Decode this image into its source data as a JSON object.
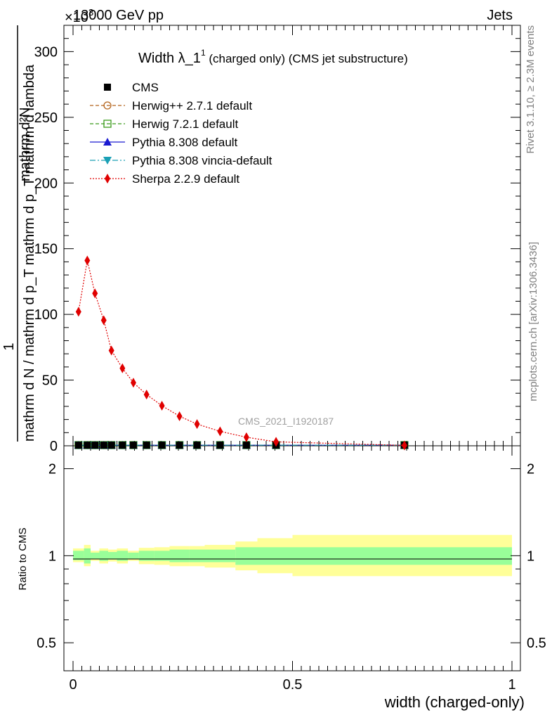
{
  "header": {
    "energy_label": "13000 GeV pp",
    "exponent_label": "×10",
    "exponent_power": "3",
    "process_label": "Jets"
  },
  "plot_title": {
    "main": "Width λ_1",
    "superscript": "1",
    "suffix": " (charged only) (CMS jet substructure)"
  },
  "side_labels": {
    "rivet": "Rivet 3.1.10, ≥ 2.3M events",
    "mcplots": "mcplots.cern.ch [arXiv:1306.3436]"
  },
  "watermark": "CMS_2021_I1920187",
  "axes": {
    "ylabel_numerator": "1",
    "ylabel_denominator": "mathrm d N / mathrm d p_T mathrm d p_T mathrm d lambda",
    "ylabel_numerator_full": "mathrm d²N",
    "ratio_ylabel": "Ratio to CMS",
    "xlabel": "width (charged-only)",
    "main_yticks": [
      "0",
      "50",
      "100",
      "150",
      "200",
      "250",
      "300"
    ],
    "ratio_yticks_left": [
      "0.5",
      "1",
      "2"
    ],
    "ratio_yticks_right": [
      "0.5",
      "1",
      "2"
    ],
    "xticks": [
      "0",
      "0.5",
      "1"
    ]
  },
  "legend": [
    {
      "label": "CMS",
      "color": "#000000",
      "marker": "square-filled",
      "line": "none"
    },
    {
      "label": "Herwig++ 2.7.1 default",
      "color": "#b5651d",
      "marker": "circle-open",
      "line": "dashed"
    },
    {
      "label": "Herwig 7.2.1 default",
      "color": "#3a9a1a",
      "marker": "square-open",
      "line": "dashed"
    },
    {
      "label": "Pythia 8.308 default",
      "color": "#1a1ad0",
      "marker": "triangle-up-filled",
      "line": "solid"
    },
    {
      "label": "Pythia 8.308 vincia-default",
      "color": "#1aa0b5",
      "marker": "triangle-down-filled",
      "line": "dashdot"
    },
    {
      "label": "Sherpa 2.2.9 default",
      "color": "#e00000",
      "marker": "diamond-filled",
      "line": "dotted"
    }
  ],
  "chart_data": {
    "type": "line",
    "xlim": [
      0,
      1
    ],
    "ylim": [
      0,
      320
    ],
    "ratio_ylim": [
      0.4,
      2.4
    ],
    "ratio_log_scale": true,
    "y_multiplier": "×10^3",
    "sherpa": {
      "name": "Sherpa 2.2.9 default",
      "x": [
        0.0125,
        0.0325,
        0.05,
        0.07,
        0.0875,
        0.1125,
        0.1375,
        0.1675,
        0.2025,
        0.2425,
        0.2825,
        0.335,
        0.395,
        0.4625,
        0.755
      ],
      "y": [
        102,
        141,
        116,
        95.5,
        72.5,
        59,
        48,
        39,
        30.5,
        22.5,
        16.5,
        11,
        6.5,
        3,
        0.3
      ]
    },
    "near_zero_series": {
      "x": [
        0.0125,
        0.0325,
        0.05,
        0.07,
        0.0875,
        0.1125,
        0.1375,
        0.1675,
        0.2025,
        0.2425,
        0.2825,
        0.335,
        0.395,
        0.4625,
        0.755
      ],
      "y": [
        0.5,
        0.5,
        0.5,
        0.5,
        0.5,
        0.5,
        0.5,
        0.5,
        0.5,
        0.5,
        0.5,
        0.5,
        0.5,
        0.5,
        0.5
      ]
    },
    "bin_edges": [
      0.0,
      0.025,
      0.04,
      0.06,
      0.08,
      0.1,
      0.125,
      0.15,
      0.185,
      0.22,
      0.265,
      0.3,
      0.37,
      0.42,
      0.5,
      1.0
    ],
    "ratio_band_stat": [
      [
        0.965,
        1.04
      ],
      [
        0.94,
        1.06
      ],
      [
        0.975,
        1.025
      ],
      [
        0.96,
        1.04
      ],
      [
        0.97,
        1.03
      ],
      [
        0.96,
        1.04
      ],
      [
        0.975,
        1.025
      ],
      [
        0.96,
        1.04
      ],
      [
        0.96,
        1.04
      ],
      [
        0.95,
        1.05
      ],
      [
        0.95,
        1.05
      ],
      [
        0.95,
        1.05
      ],
      [
        0.93,
        1.07
      ],
      [
        0.93,
        1.07
      ],
      [
        0.93,
        1.07
      ]
    ],
    "ratio_band_total": [
      [
        0.95,
        1.06
      ],
      [
        0.92,
        1.09
      ],
      [
        0.96,
        1.04
      ],
      [
        0.94,
        1.06
      ],
      [
        0.955,
        1.05
      ],
      [
        0.94,
        1.06
      ],
      [
        0.96,
        1.04
      ],
      [
        0.935,
        1.065
      ],
      [
        0.93,
        1.07
      ],
      [
        0.92,
        1.08
      ],
      [
        0.92,
        1.08
      ],
      [
        0.91,
        1.09
      ],
      [
        0.89,
        1.12
      ],
      [
        0.87,
        1.15
      ],
      [
        0.85,
        1.18
      ]
    ],
    "band_colors": {
      "stat": "#99ff99",
      "total": "#ffff99"
    }
  }
}
